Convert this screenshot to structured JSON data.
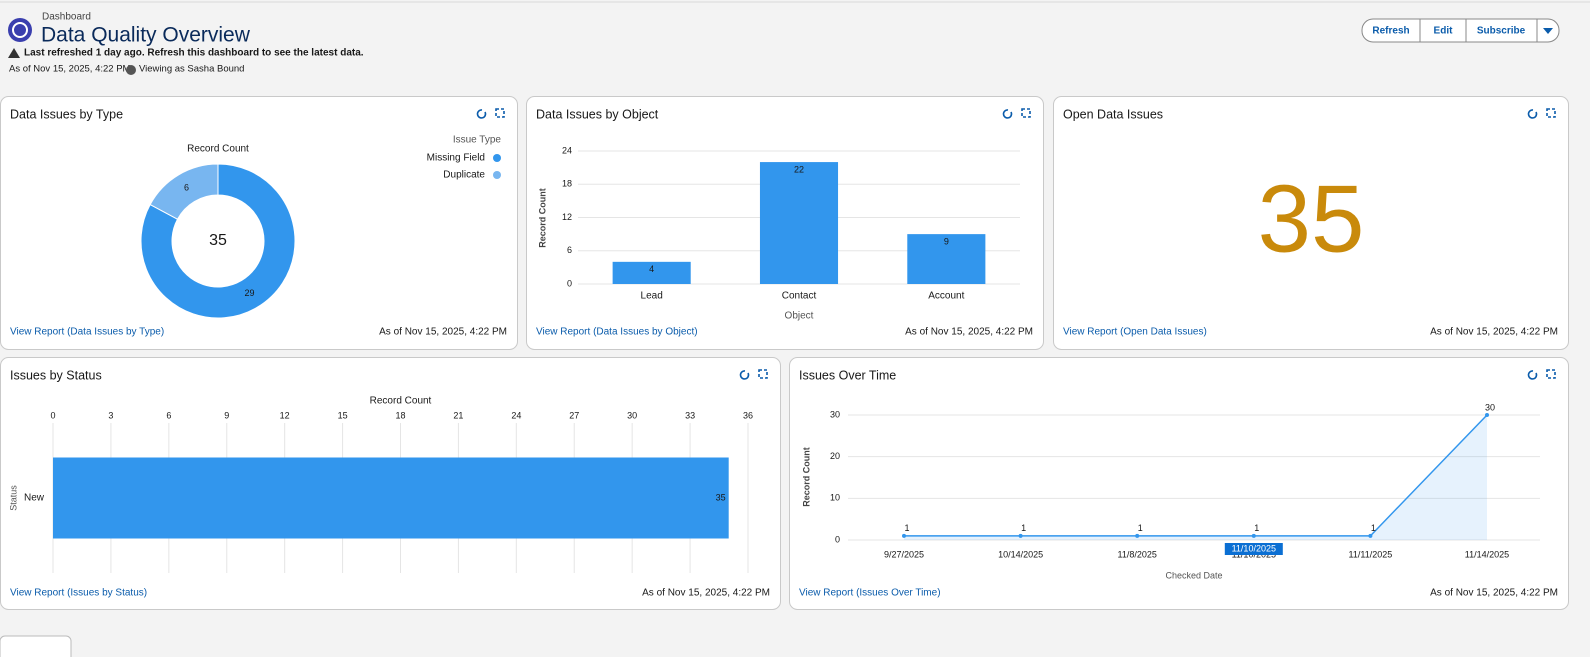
{
  "header": {
    "breadcrumb": "Dashboard",
    "title": "Data Quality Overview",
    "warning": "Last refreshed 1 day ago. Refresh this dashboard to see the latest data.",
    "as_of": "As of Nov 15, 2025, 4:22 PM·",
    "viewing_as": "Viewing as Sasha Bound"
  },
  "buttons": [
    "Refresh",
    "Edit",
    "Subscribe"
  ],
  "chart_data": [
    {
      "type": "donut",
      "title": "Data Issues by Type",
      "subtitle": "Record Count",
      "total": 35,
      "legend_title": "Issue Type",
      "categories": [
        "Missing Field",
        "Duplicate"
      ],
      "values": [
        29,
        6
      ],
      "colors": [
        "#3296ed",
        "#78b6f0"
      ],
      "footer_link": "View Report (Data Issues by Type)",
      "timestamp": "As of Nov 15, 2025, 4:22 PM"
    },
    {
      "type": "bar",
      "title": "Data Issues by Object",
      "categories": [
        "Lead",
        "Contact",
        "Account"
      ],
      "values": [
        4,
        22,
        9
      ],
      "color": "#3296ed",
      "ylim": [
        0,
        24
      ],
      "yticks": [
        0,
        6,
        12,
        18,
        24
      ],
      "xlabel": "Object",
      "ylabel": "Record Count",
      "grid": true,
      "footer_link": "View Report (Data Issues by Object)",
      "timestamp": "As of Nov 15, 2025, 4:22 PM"
    },
    {
      "type": "metric",
      "title": "Open Data Issues",
      "value": 35,
      "color": "#c98a0b",
      "footer_link": "View Report (Open Data Issues)",
      "timestamp": "As of Nov 15, 2025, 4:22 PM"
    },
    {
      "type": "hbar",
      "title": "Issues by Status",
      "categories": [
        "New"
      ],
      "values": [
        35
      ],
      "color": "#3296ed",
      "xlim": [
        0,
        36
      ],
      "xticks": [
        0,
        3,
        6,
        9,
        12,
        15,
        18,
        21,
        24,
        27,
        30,
        33,
        36
      ],
      "xlabel": "Record Count",
      "ylabel": "Status",
      "grid": true,
      "footer_link": "View Report (Issues by Status)",
      "timestamp": "As of Nov 15, 2025, 4:22 PM"
    },
    {
      "type": "line",
      "title": "Issues Over Time",
      "categories": [
        "9/27/2025",
        "10/14/2025",
        "11/8/2025",
        "11/10/2025",
        "11/11/2025",
        "11/14/2025"
      ],
      "values": [
        1,
        1,
        1,
        1,
        1,
        30
      ],
      "color": "#3296ed",
      "ylim": [
        0,
        30
      ],
      "yticks": [
        0,
        10,
        20,
        30
      ],
      "xlabel": "Checked Date",
      "ylabel": "Record Count",
      "grid": true,
      "highlight": 3,
      "footer_link": "View Report (Issues Over Time)",
      "timestamp": "As of Nov 15, 2025, 4:22 PM"
    }
  ]
}
